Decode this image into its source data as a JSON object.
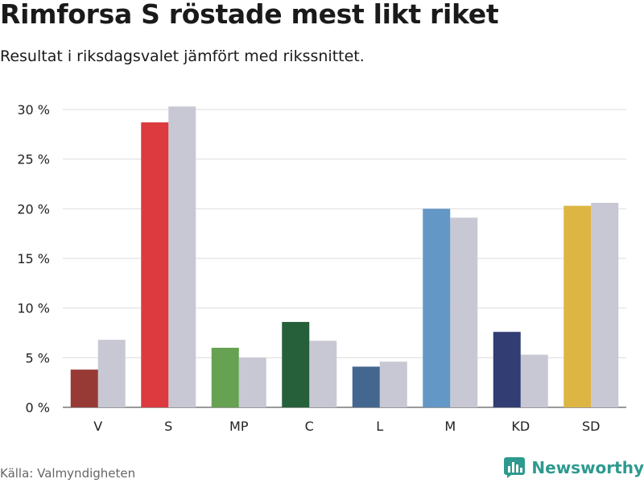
{
  "header": {
    "title": "Rimforsa S röstade mest likt riket",
    "subtitle": "Resultat i riksdagsvalet jämfört med rikssnittet."
  },
  "footer": {
    "source": "Källa: Valmyndigheten",
    "brand": "Newsworthy",
    "brand_icon": "bar-chart-icon"
  },
  "colors": {
    "national": "#c8c8d4",
    "brand": "#2e9a8e",
    "grid": "#dddddd"
  },
  "chart_data": {
    "type": "bar",
    "title": "Rimforsa S röstade mest likt riket",
    "subtitle": "Resultat i riksdagsvalet jämfört med rikssnittet.",
    "xlabel": "",
    "ylabel": "",
    "ylim": [
      0,
      30
    ],
    "yticks": [
      0,
      5,
      10,
      15,
      20,
      25,
      30
    ],
    "tick_suffix": " %",
    "grid": true,
    "categories": [
      "V",
      "S",
      "MP",
      "C",
      "L",
      "M",
      "KD",
      "SD"
    ],
    "series": [
      {
        "values": [
          3.8,
          28.7,
          6.0,
          8.6,
          4.1,
          20.0,
          7.6,
          20.3
        ],
        "colors": [
          "#973a36",
          "#dc3a3f",
          "#66a251",
          "#26603a",
          "#44678f",
          "#6397c6",
          "#313d73",
          "#ddb542"
        ]
      },
      {
        "values": [
          6.8,
          30.3,
          5.0,
          6.7,
          4.6,
          19.1,
          5.3,
          20.6
        ],
        "color": "#c8c8d4"
      }
    ]
  }
}
